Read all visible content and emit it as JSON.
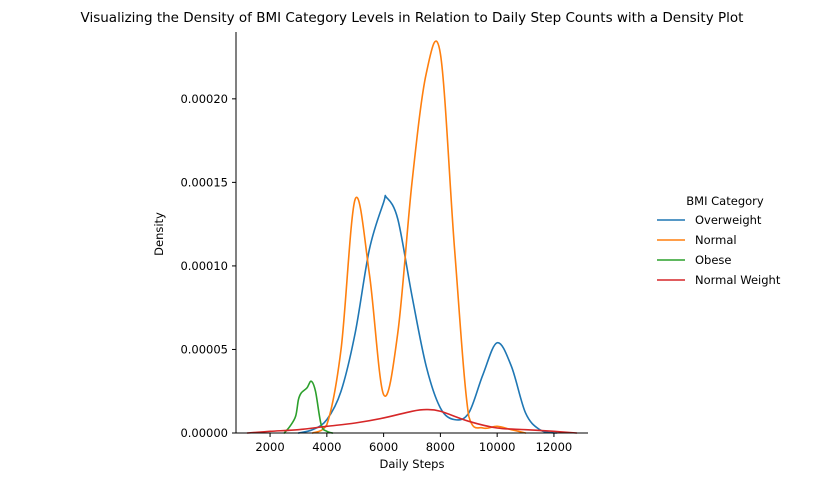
{
  "chart_data": {
    "type": "line",
    "title": "Visualizing the Density of BMI Category Levels in Relation to Daily Step Counts with a Density Plot",
    "xlabel": "Daily Steps",
    "ylabel": "Density",
    "xlim": [
      800,
      13200
    ],
    "ylim": [
      0,
      0.00024
    ],
    "xticks": [
      2000,
      4000,
      6000,
      8000,
      10000,
      12000
    ],
    "xtick_labels": [
      "2000",
      "4000",
      "6000",
      "8000",
      "10000",
      "12000"
    ],
    "yticks": [
      0,
      5e-05,
      0.0001,
      0.00015,
      0.0002
    ],
    "ytick_labels": [
      "0.00000",
      "0.00005",
      "0.00010",
      "0.00015",
      "0.00020"
    ],
    "grid": false,
    "legend": {
      "title": "BMI Category",
      "placement": "right"
    },
    "series": [
      {
        "name": "Overweight",
        "color": "#1f77b4",
        "x": [
          3000,
          3500,
          4000,
          4500,
          5000,
          5500,
          6000,
          6100,
          6500,
          7000,
          7500,
          8000,
          8500,
          9000,
          9500,
          10000,
          10500,
          11000,
          11500,
          12000,
          12100
        ],
        "y": [
          0,
          2e-06,
          8e-06,
          2.5e-05,
          6e-05,
          0.00011,
          0.000138,
          0.000141,
          0.000128,
          8.2e-05,
          4e-05,
          1.5e-05,
          8e-06,
          1.2e-05,
          3.5e-05,
          5.4e-05,
          4e-05,
          1.2e-05,
          2e-06,
          0,
          0
        ]
      },
      {
        "name": "Normal",
        "color": "#ff7f0e",
        "x": [
          3500,
          4000,
          4500,
          5000,
          5500,
          6000,
          6500,
          7000,
          7500,
          8000,
          8500,
          9000,
          9500,
          10000,
          10500,
          11000
        ],
        "y": [
          0,
          5e-06,
          5e-05,
          0.00014,
          9.5e-05,
          2.3e-05,
          6e-05,
          0.00015,
          0.000215,
          0.000227,
          0.00011,
          1e-05,
          3e-06,
          4e-06,
          2e-06,
          0
        ]
      },
      {
        "name": "Obese",
        "color": "#2ca02c",
        "x": [
          2500,
          2700,
          2900,
          3000,
          3100,
          3300,
          3450,
          3600,
          3800,
          4000,
          4200
        ],
        "y": [
          0,
          4e-06,
          1e-05,
          2e-05,
          2.4e-05,
          2.7e-05,
          3.1e-05,
          2.5e-05,
          5e-06,
          1e-06,
          0
        ]
      },
      {
        "name": "Normal Weight",
        "color": "#d62728",
        "x": [
          1200,
          2000,
          3000,
          4000,
          5000,
          6000,
          7000,
          7500,
          8000,
          9000,
          10000,
          11000,
          12000,
          12800
        ],
        "y": [
          0,
          1e-06,
          2e-06,
          4e-06,
          6e-06,
          9e-06,
          1.3e-05,
          1.4e-05,
          1.3e-05,
          7e-06,
          3e-06,
          2e-06,
          1e-06,
          0
        ]
      }
    ]
  }
}
